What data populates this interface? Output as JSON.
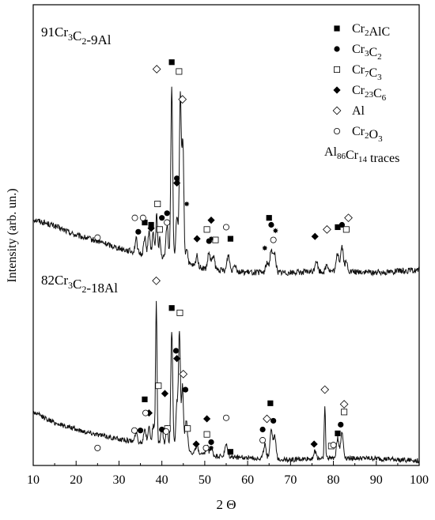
{
  "chart_data": {
    "type": "line",
    "title": "",
    "xlabel": "2 Θ",
    "ylabel": "Intensity (arb. un.)",
    "xlim": [
      10,
      100
    ],
    "xticks": [
      10,
      20,
      30,
      40,
      50,
      60,
      70,
      80,
      90,
      100
    ],
    "y_ticks_shown": false,
    "grid": false,
    "legend_position": "top-right",
    "legend": [
      {
        "key": "Cr2AlC",
        "base": "Cr",
        "parts": [
          {
            "t": "2",
            "sub": true
          },
          {
            "t": "AlC",
            "sub": false
          }
        ],
        "marker": "square-filled"
      },
      {
        "key": "Cr3C2",
        "base": "Cr",
        "parts": [
          {
            "t": "3",
            "sub": true
          },
          {
            "t": "C",
            "sub": false
          },
          {
            "t": "2",
            "sub": true
          }
        ],
        "marker": "circle-filled"
      },
      {
        "key": "Cr7C3",
        "base": "Cr",
        "parts": [
          {
            "t": "7",
            "sub": true
          },
          {
            "t": "C",
            "sub": false
          },
          {
            "t": "3",
            "sub": true
          }
        ],
        "marker": "square-open"
      },
      {
        "key": "Cr23C6",
        "base": "Cr",
        "parts": [
          {
            "t": "23",
            "sub": true
          },
          {
            "t": "C",
            "sub": false
          },
          {
            "t": "6",
            "sub": true
          }
        ],
        "marker": "diamond-filled"
      },
      {
        "key": "Al",
        "base": "Al",
        "parts": [],
        "marker": "diamond-open"
      },
      {
        "key": "Cr2O3",
        "base": "Cr",
        "parts": [
          {
            "t": "2",
            "sub": true
          },
          {
            "t": "O",
            "sub": false
          },
          {
            "t": "3",
            "sub": true
          }
        ],
        "marker": "circle-open"
      },
      {
        "key": "Al86Cr14",
        "base": "Al",
        "parts": [
          {
            "t": "86",
            "sub": true
          },
          {
            "t": "Cr",
            "sub": false
          },
          {
            "t": "14",
            "sub": true
          },
          {
            "t": " traces",
            "sub": false
          }
        ],
        "marker": "star"
      }
    ],
    "series": [
      {
        "name": "91Cr3C2-9Al",
        "label_parts": [
          {
            "t": "91Cr",
            "sub": false
          },
          {
            "t": "3",
            "sub": true
          },
          {
            "t": "C",
            "sub": false
          },
          {
            "t": "2",
            "sub": true
          },
          {
            "t": "-9Al",
            "sub": false
          }
        ],
        "baseline": [
          [
            10,
            0.55
          ],
          [
            15,
            0.49
          ],
          [
            20,
            0.41
          ],
          [
            25,
            0.36
          ],
          [
            30,
            0.3
          ],
          [
            35,
            0.25
          ],
          [
            40,
            0.22
          ],
          [
            50,
            0.12
          ],
          [
            60,
            0.09
          ],
          [
            70,
            0.09
          ],
          [
            80,
            0.1
          ],
          [
            90,
            0.09
          ],
          [
            100,
            0.11
          ]
        ],
        "noise": 0.025,
        "peaks": [
          [
            34.0,
            0.12,
            0.25
          ],
          [
            36.0,
            0.15,
            0.25
          ],
          [
            37.0,
            0.2,
            0.25
          ],
          [
            38.0,
            0.2,
            0.25
          ],
          [
            38.8,
            0.38,
            0.18
          ],
          [
            39.5,
            0.16,
            0.2
          ],
          [
            41.2,
            0.3,
            0.25
          ],
          [
            42.3,
            1.5,
            0.22
          ],
          [
            43.5,
            0.4,
            0.25
          ],
          [
            44.3,
            1.45,
            0.22
          ],
          [
            44.9,
            1.05,
            0.22
          ],
          [
            45.8,
            0.14,
            0.25
          ],
          [
            48.2,
            0.1,
            0.25
          ],
          [
            51.0,
            0.14,
            0.3
          ],
          [
            52.0,
            0.12,
            0.3
          ],
          [
            55.5,
            0.14,
            0.3
          ],
          [
            57.0,
            0.07,
            0.3
          ],
          [
            64.5,
            0.08,
            0.3
          ],
          [
            65.5,
            0.2,
            0.3
          ],
          [
            66.3,
            0.16,
            0.3
          ],
          [
            76.0,
            0.1,
            0.3
          ],
          [
            78.5,
            0.06,
            0.3
          ],
          [
            81.0,
            0.16,
            0.3
          ],
          [
            82.0,
            0.22,
            0.3
          ],
          [
            83.0,
            0.08,
            0.3
          ]
        ]
      },
      {
        "name": "82Cr3C2-18Al",
        "label_parts": [
          {
            "t": "82Cr",
            "sub": false
          },
          {
            "t": "3",
            "sub": true
          },
          {
            "t": "C",
            "sub": false
          },
          {
            "t": "2",
            "sub": true
          },
          {
            "t": "-18Al",
            "sub": false
          }
        ],
        "baseline": [
          [
            10,
            0.55
          ],
          [
            15,
            0.44
          ],
          [
            20,
            0.37
          ],
          [
            25,
            0.32
          ],
          [
            30,
            0.27
          ],
          [
            35,
            0.24
          ],
          [
            40,
            0.22
          ],
          [
            50,
            0.1
          ],
          [
            60,
            0.08
          ],
          [
            70,
            0.06
          ],
          [
            80,
            0.08
          ],
          [
            90,
            0.07
          ],
          [
            100,
            0.05
          ]
        ],
        "noise": 0.025,
        "peaks": [
          [
            34.0,
            0.1,
            0.25
          ],
          [
            36.0,
            0.15,
            0.25
          ],
          [
            37.0,
            0.17,
            0.25
          ],
          [
            38.0,
            0.18,
            0.25
          ],
          [
            38.7,
            1.45,
            0.17
          ],
          [
            40.0,
            0.16,
            0.25
          ],
          [
            41.2,
            0.2,
            0.25
          ],
          [
            42.3,
            1.2,
            0.22
          ],
          [
            43.5,
            0.45,
            0.25
          ],
          [
            44.1,
            1.2,
            0.22
          ],
          [
            44.8,
            0.65,
            0.22
          ],
          [
            45.7,
            0.3,
            0.3
          ],
          [
            48.2,
            0.07,
            0.3
          ],
          [
            50.5,
            0.1,
            0.3
          ],
          [
            51.5,
            0.08,
            0.3
          ],
          [
            55.0,
            0.12,
            0.3
          ],
          [
            64.0,
            0.14,
            0.3
          ],
          [
            65.5,
            0.3,
            0.3
          ],
          [
            66.3,
            0.22,
            0.3
          ],
          [
            75.7,
            0.07,
            0.3
          ],
          [
            78.0,
            0.52,
            0.15
          ],
          [
            81.0,
            0.2,
            0.3
          ],
          [
            82.0,
            0.26,
            0.3
          ]
        ]
      }
    ],
    "markers": [
      {
        "series": 0,
        "type": "square-filled",
        "x": 36.0,
        "y": 0.52
      },
      {
        "series": 0,
        "type": "square-filled",
        "x": 37.5,
        "y": 0.5
      },
      {
        "series": 0,
        "type": "square-filled",
        "x": 42.3,
        "y": 1.9
      },
      {
        "series": 0,
        "type": "square-filled",
        "x": 56.0,
        "y": 0.38
      },
      {
        "series": 0,
        "type": "square-filled",
        "x": 65.0,
        "y": 0.56
      },
      {
        "series": 0,
        "type": "square-filled",
        "x": 81.0,
        "y": 0.48
      },
      {
        "series": 0,
        "type": "circle-filled",
        "x": 34.5,
        "y": 0.44
      },
      {
        "series": 0,
        "type": "circle-filled",
        "x": 40.0,
        "y": 0.56
      },
      {
        "series": 0,
        "type": "circle-filled",
        "x": 41.2,
        "y": 0.6
      },
      {
        "series": 0,
        "type": "circle-filled",
        "x": 43.5,
        "y": 0.9
      },
      {
        "series": 0,
        "type": "circle-filled",
        "x": 51.0,
        "y": 0.36
      },
      {
        "series": 0,
        "type": "circle-filled",
        "x": 65.5,
        "y": 0.5
      },
      {
        "series": 0,
        "type": "circle-filled",
        "x": 82.0,
        "y": 0.5
      },
      {
        "series": 0,
        "type": "square-open",
        "x": 39.0,
        "y": 0.68
      },
      {
        "series": 0,
        "type": "square-open",
        "x": 39.5,
        "y": 0.46
      },
      {
        "series": 0,
        "type": "square-open",
        "x": 44.0,
        "y": 1.82
      },
      {
        "series": 0,
        "type": "square-open",
        "x": 50.5,
        "y": 0.46
      },
      {
        "series": 0,
        "type": "square-open",
        "x": 52.5,
        "y": 0.37
      },
      {
        "series": 0,
        "type": "square-open",
        "x": 83.0,
        "y": 0.46
      },
      {
        "series": 0,
        "type": "diamond-filled",
        "x": 37.5,
        "y": 0.47
      },
      {
        "series": 0,
        "type": "diamond-filled",
        "x": 43.5,
        "y": 0.86
      },
      {
        "series": 0,
        "type": "diamond-filled",
        "x": 48.2,
        "y": 0.38
      },
      {
        "series": 0,
        "type": "diamond-filled",
        "x": 51.5,
        "y": 0.54
      },
      {
        "series": 0,
        "type": "diamond-filled",
        "x": 75.7,
        "y": 0.4
      },
      {
        "series": 0,
        "type": "diamond-open",
        "x": 38.8,
        "y": 1.84
      },
      {
        "series": 0,
        "type": "diamond-open",
        "x": 44.8,
        "y": 1.58
      },
      {
        "series": 0,
        "type": "diamond-open",
        "x": 78.5,
        "y": 0.46
      },
      {
        "series": 0,
        "type": "diamond-open",
        "x": 83.5,
        "y": 0.56
      },
      {
        "series": 0,
        "type": "circle-open",
        "x": 25.0,
        "y": 0.39
      },
      {
        "series": 0,
        "type": "circle-open",
        "x": 33.7,
        "y": 0.56
      },
      {
        "series": 0,
        "type": "circle-open",
        "x": 35.6,
        "y": 0.56
      },
      {
        "series": 0,
        "type": "circle-open",
        "x": 41.2,
        "y": 0.52
      },
      {
        "series": 0,
        "type": "circle-open",
        "x": 55.0,
        "y": 0.48
      },
      {
        "series": 0,
        "type": "circle-open",
        "x": 66.0,
        "y": 0.37
      },
      {
        "series": 0,
        "type": "star",
        "x": 45.8,
        "y": 0.68
      },
      {
        "series": 0,
        "type": "star",
        "x": 51.5,
        "y": 0.38
      },
      {
        "series": 0,
        "type": "star",
        "x": 64.0,
        "y": 0.3
      },
      {
        "series": 0,
        "type": "star",
        "x": 66.5,
        "y": 0.45
      },
      {
        "series": 1,
        "type": "square-filled",
        "x": 36.0,
        "y": 0.68
      },
      {
        "series": 1,
        "type": "square-filled",
        "x": 42.3,
        "y": 1.62
      },
      {
        "series": 1,
        "type": "square-filled",
        "x": 56.0,
        "y": 0.14
      },
      {
        "series": 1,
        "type": "square-filled",
        "x": 65.3,
        "y": 0.64
      },
      {
        "series": 1,
        "type": "square-filled",
        "x": 81.0,
        "y": 0.33
      },
      {
        "series": 1,
        "type": "circle-filled",
        "x": 35.0,
        "y": 0.36
      },
      {
        "series": 1,
        "type": "circle-filled",
        "x": 40.0,
        "y": 0.37
      },
      {
        "series": 1,
        "type": "circle-filled",
        "x": 43.3,
        "y": 1.18
      },
      {
        "series": 1,
        "type": "circle-filled",
        "x": 45.5,
        "y": 0.78
      },
      {
        "series": 1,
        "type": "circle-filled",
        "x": 51.5,
        "y": 0.24
      },
      {
        "series": 1,
        "type": "circle-filled",
        "x": 63.5,
        "y": 0.37
      },
      {
        "series": 1,
        "type": "circle-filled",
        "x": 66.0,
        "y": 0.46
      },
      {
        "series": 1,
        "type": "circle-filled",
        "x": 81.7,
        "y": 0.42
      },
      {
        "series": 1,
        "type": "square-open",
        "x": 39.2,
        "y": 0.82
      },
      {
        "series": 1,
        "type": "square-open",
        "x": 41.3,
        "y": 0.38
      },
      {
        "series": 1,
        "type": "square-open",
        "x": 44.2,
        "y": 1.57
      },
      {
        "series": 1,
        "type": "square-open",
        "x": 46.0,
        "y": 0.38
      },
      {
        "series": 1,
        "type": "square-open",
        "x": 50.5,
        "y": 0.32
      },
      {
        "series": 1,
        "type": "square-open",
        "x": 79.5,
        "y": 0.2
      },
      {
        "series": 1,
        "type": "square-open",
        "x": 82.5,
        "y": 0.55
      },
      {
        "series": 1,
        "type": "diamond-filled",
        "x": 37.0,
        "y": 0.54
      },
      {
        "series": 1,
        "type": "diamond-filled",
        "x": 40.7,
        "y": 0.74
      },
      {
        "series": 1,
        "type": "diamond-filled",
        "x": 43.5,
        "y": 1.1
      },
      {
        "series": 1,
        "type": "diamond-filled",
        "x": 48.0,
        "y": 0.22
      },
      {
        "series": 1,
        "type": "diamond-filled",
        "x": 50.5,
        "y": 0.48
      },
      {
        "series": 1,
        "type": "diamond-filled",
        "x": 75.5,
        "y": 0.22
      },
      {
        "series": 1,
        "type": "diamond-open",
        "x": 38.7,
        "y": 1.9
      },
      {
        "series": 1,
        "type": "diamond-open",
        "x": 45.0,
        "y": 0.94
      },
      {
        "series": 1,
        "type": "diamond-open",
        "x": 64.5,
        "y": 0.48
      },
      {
        "series": 1,
        "type": "diamond-open",
        "x": 78.0,
        "y": 0.78
      },
      {
        "series": 1,
        "type": "diamond-open",
        "x": 82.5,
        "y": 0.63
      },
      {
        "series": 1,
        "type": "circle-open",
        "x": 25.0,
        "y": 0.18
      },
      {
        "series": 1,
        "type": "circle-open",
        "x": 33.6,
        "y": 0.36
      },
      {
        "series": 1,
        "type": "circle-open",
        "x": 36.2,
        "y": 0.54
      },
      {
        "series": 1,
        "type": "circle-open",
        "x": 41.0,
        "y": 0.35
      },
      {
        "series": 1,
        "type": "circle-open",
        "x": 50.3,
        "y": 0.18
      },
      {
        "series": 1,
        "type": "circle-open",
        "x": 55.0,
        "y": 0.49
      },
      {
        "series": 1,
        "type": "circle-open",
        "x": 63.5,
        "y": 0.26
      },
      {
        "series": 1,
        "type": "circle-open",
        "x": 80.0,
        "y": 0.21
      },
      {
        "series": 1,
        "type": "star",
        "x": 51.5,
        "y": 0.18
      }
    ]
  }
}
